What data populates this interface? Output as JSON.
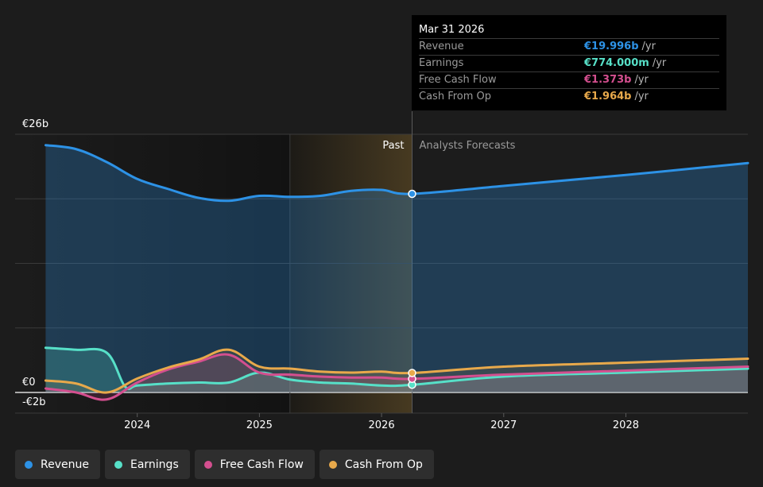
{
  "chart_data": {
    "type": "area",
    "currency": "€",
    "y_axis_labels": [
      "€26b",
      "€0",
      "-€2b"
    ],
    "ylim": [
      -2,
      26
    ],
    "x_tick_labels": [
      "2024",
      "2025",
      "2026",
      "2027",
      "2028"
    ],
    "x_ticks": [
      2024,
      2025,
      2026,
      2027,
      2028
    ],
    "xlim": [
      2023.0,
      2028.999
    ],
    "divider_x": 2026.25,
    "highlight_start_x": 2025.25,
    "past_label": "Past",
    "forecast_label": "Analysts Forecasts",
    "series": [
      {
        "name": "Revenue",
        "color": "#2d92e6",
        "x": [
          2023.25,
          2023.5,
          2023.75,
          2024.0,
          2024.25,
          2024.5,
          2024.75,
          2025.0,
          2025.25,
          2025.5,
          2025.75,
          2026.0,
          2026.25,
          2027.0,
          2028.0,
          2029.0
        ],
        "y": [
          24.9,
          24.5,
          23.2,
          21.5,
          20.5,
          19.6,
          19.3,
          19.8,
          19.7,
          19.8,
          20.3,
          20.4,
          20.0,
          20.8,
          21.9,
          23.1
        ]
      },
      {
        "name": "Earnings",
        "color": "#57e0c8",
        "x": [
          2023.25,
          2023.5,
          2023.75,
          2023.9,
          2024.0,
          2024.25,
          2024.5,
          2024.75,
          2025.0,
          2025.25,
          2025.5,
          2025.75,
          2026.0,
          2026.25,
          2027.0,
          2028.0,
          2029.0
        ],
        "y": [
          4.5,
          4.3,
          4.0,
          0.6,
          0.7,
          0.9,
          1.0,
          1.0,
          2.0,
          1.3,
          1.0,
          0.9,
          0.7,
          0.774,
          1.6,
          2.0,
          2.4
        ]
      },
      {
        "name": "Free Cash Flow",
        "color": "#d44f8f",
        "x": [
          2023.25,
          2023.5,
          2023.75,
          2024.0,
          2024.25,
          2024.5,
          2024.75,
          2025.0,
          2025.25,
          2025.5,
          2025.75,
          2026.0,
          2026.25,
          2027.0,
          2028.0,
          2029.0
        ],
        "y": [
          0.4,
          0.0,
          -0.7,
          1.0,
          2.3,
          3.1,
          3.8,
          2.0,
          1.8,
          1.6,
          1.5,
          1.5,
          1.373,
          1.8,
          2.2,
          2.6
        ]
      },
      {
        "name": "Cash From Op",
        "color": "#e8a94b",
        "x": [
          2023.25,
          2023.5,
          2023.75,
          2024.0,
          2024.25,
          2024.5,
          2024.75,
          2025.0,
          2025.25,
          2025.5,
          2025.75,
          2026.0,
          2026.25,
          2027.0,
          2028.0,
          2029.0
        ],
        "y": [
          1.2,
          0.9,
          0.0,
          1.4,
          2.5,
          3.3,
          4.3,
          2.6,
          2.4,
          2.1,
          2.0,
          2.1,
          1.964,
          2.6,
          3.0,
          3.4
        ]
      }
    ]
  },
  "tooltip": {
    "date": "Mar 31 2026",
    "rows": [
      {
        "label": "Revenue",
        "value": "€19.996b",
        "unit": "/yr",
        "color": "#2d92e6"
      },
      {
        "label": "Earnings",
        "value": "€774.000m",
        "unit": "/yr",
        "color": "#57e0c8"
      },
      {
        "label": "Free Cash Flow",
        "value": "€1.373b",
        "unit": "/yr",
        "color": "#d44f8f"
      },
      {
        "label": "Cash From Op",
        "value": "€1.964b",
        "unit": "/yr",
        "color": "#e8a94b"
      }
    ]
  },
  "legend": [
    {
      "label": "Revenue",
      "color": "#2d92e6"
    },
    {
      "label": "Earnings",
      "color": "#57e0c8"
    },
    {
      "label": "Free Cash Flow",
      "color": "#d44f8f"
    },
    {
      "label": "Cash From Op",
      "color": "#e8a94b"
    }
  ]
}
